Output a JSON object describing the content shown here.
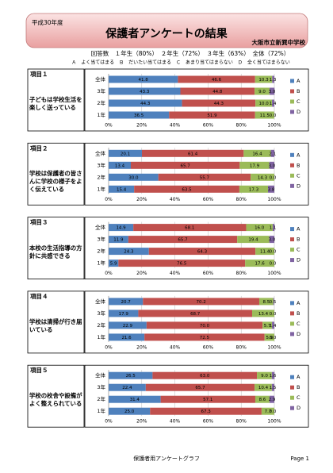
{
  "header": {
    "year": "平成30年度",
    "title": "保護者アンケートの結果",
    "school": "大阪市立新巽中学校",
    "responses": "回答数　１年生（80%）　２年生（72%）　３年生（63%）　全体（72%）",
    "legend_note": "Ａ　よく当てはまる　Ｂ　だいたい当てはまる　Ｃ　あまり当てはまらない　Ｄ　全く当てはまらない"
  },
  "chart_data": [
    {
      "type": "stacked-bar",
      "title": "項目１",
      "question": "子どもは学校生活を楽しく送っている",
      "categories": [
        "全体",
        "3年",
        "2年",
        "1年"
      ],
      "series": [
        {
          "name": "A",
          "color": "#4f81bd",
          "values": [
            41.8,
            43.3,
            44.3,
            36.5
          ],
          "value_labels": [
            "41.8",
            "43.3",
            "44.3",
            "36.5"
          ]
        },
        {
          "name": "B",
          "color": "#c0504d",
          "values": [
            46.6,
            44.8,
            44.3,
            51.9
          ],
          "value_labels": [
            "46.6",
            "44.8",
            "44.3",
            "51.9"
          ]
        },
        {
          "name": "C",
          "color": "#9bbb59",
          "values": [
            10.3,
            9.0,
            10.0,
            11.5
          ],
          "value_labels": [
            "10.3",
            "9.0",
            "10.0",
            "11.5"
          ]
        },
        {
          "name": "D",
          "color": "#8064a2",
          "values": [
            1.3,
            3.0,
            1.4,
            0
          ],
          "value_labels": [
            "1.3",
            "3.0",
            "1.4",
            "0.0"
          ]
        }
      ],
      "xlim": [
        0,
        100
      ],
      "xticks": [
        {
          "value": 0,
          "label": "0%"
        },
        {
          "value": 20,
          "label": "20%"
        },
        {
          "value": 40,
          "label": "40%"
        },
        {
          "value": 60,
          "label": "60%"
        },
        {
          "value": 80,
          "label": "80%"
        },
        {
          "value": 100,
          "label": "100%"
        }
      ],
      "grid": true
    },
    {
      "type": "stacked-bar",
      "title": "項目２",
      "question": "学校は保護者の皆さんに学校の様子をよく伝えている",
      "categories": [
        "全体",
        "3年",
        "2年",
        "1年"
      ],
      "series": [
        {
          "name": "A",
          "color": "#4f81bd",
          "values": [
            20.1,
            13.4,
            30.0,
            15.4
          ],
          "value_labels": [
            "20.1",
            "13.4",
            "30.0",
            "15.4"
          ]
        },
        {
          "name": "B",
          "color": "#c0504d",
          "values": [
            61.4,
            65.7,
            55.7,
            63.5
          ],
          "value_labels": [
            "61.4",
            "65.7",
            "55.7",
            "63.5"
          ]
        },
        {
          "name": "C",
          "color": "#9bbb59",
          "values": [
            16.4,
            17.9,
            14.3,
            17.3
          ],
          "value_labels": [
            "16.4",
            "17.9",
            "14.3",
            "17.3"
          ]
        },
        {
          "name": "D",
          "color": "#8064a2",
          "values": [
            2.1,
            3.0,
            0,
            3.8
          ],
          "value_labels": [
            "2.1",
            "3.0",
            "0.0",
            "3.8"
          ]
        }
      ],
      "xlim": [
        0,
        100
      ],
      "xticks": [
        {
          "value": 0,
          "label": "0%"
        },
        {
          "value": 20,
          "label": "20%"
        },
        {
          "value": 40,
          "label": "40%"
        },
        {
          "value": 60,
          "label": "60%"
        },
        {
          "value": 80,
          "label": "80%"
        },
        {
          "value": 100,
          "label": "100%"
        }
      ],
      "grid": true
    },
    {
      "type": "stacked-bar",
      "title": "項目３",
      "question": "本校の生活指導の方針に共感できる",
      "categories": [
        "全体",
        "3年",
        "2年",
        "1年"
      ],
      "series": [
        {
          "name": "A",
          "color": "#4f81bd",
          "values": [
            14.9,
            11.9,
            24.3,
            5.9
          ],
          "value_labels": [
            "14.9",
            "11.9",
            "24.3",
            "5.9"
          ]
        },
        {
          "name": "B",
          "color": "#c0504d",
          "values": [
            68.1,
            65.7,
            64.3,
            76.5
          ],
          "value_labels": [
            "68.1",
            "65.7",
            "64.3",
            "76.5"
          ]
        },
        {
          "name": "C",
          "color": "#9bbb59",
          "values": [
            16.0,
            19.4,
            11.4,
            17.6
          ],
          "value_labels": [
            "16.0",
            "19.4",
            "11.4",
            "17.6"
          ]
        },
        {
          "name": "D",
          "color": "#8064a2",
          "values": [
            1.1,
            3.0,
            0,
            0
          ],
          "value_labels": [
            "1.1",
            "3.0",
            "0.0",
            "0.0"
          ]
        }
      ],
      "xlim": [
        0,
        100
      ],
      "xticks": [
        {
          "value": 0,
          "label": "0%"
        },
        {
          "value": 20,
          "label": "20%"
        },
        {
          "value": 40,
          "label": "40%"
        },
        {
          "value": 60,
          "label": "60%"
        },
        {
          "value": 80,
          "label": "80%"
        },
        {
          "value": 100,
          "label": "100%"
        }
      ],
      "grid": true
    },
    {
      "type": "stacked-bar",
      "title": "項目４",
      "question": "学校は清掃が行き届いている",
      "categories": [
        "全体",
        "3年",
        "2年",
        "1年"
      ],
      "series": [
        {
          "name": "A",
          "color": "#4f81bd",
          "values": [
            20.7,
            17.9,
            22.9,
            21.6
          ],
          "value_labels": [
            "20.7",
            "17.9",
            "22.9",
            "21.6"
          ]
        },
        {
          "name": "B",
          "color": "#c0504d",
          "values": [
            70.2,
            68.7,
            70.0,
            72.5
          ],
          "value_labels": [
            "70.2",
            "68.7",
            "70.0",
            "72.5"
          ]
        },
        {
          "name": "C",
          "color": "#9bbb59",
          "values": [
            8.5,
            13.4,
            5.7,
            5.9
          ],
          "value_labels": [
            "8.5",
            "13.4",
            "5.7",
            "5.9"
          ]
        },
        {
          "name": "D",
          "color": "#8064a2",
          "values": [
            0.5,
            0,
            1.4,
            0
          ],
          "value_labels": [
            "0.5",
            "0.0",
            "1.4",
            "0.0"
          ]
        }
      ],
      "xlim": [
        0,
        100
      ],
      "xticks": [
        {
          "value": 0,
          "label": "0%"
        },
        {
          "value": 20,
          "label": "20%"
        },
        {
          "value": 40,
          "label": "40%"
        },
        {
          "value": 60,
          "label": "60%"
        },
        {
          "value": 80,
          "label": "80%"
        },
        {
          "value": 100,
          "label": "100%"
        }
      ],
      "grid": true
    },
    {
      "type": "stacked-bar",
      "title": "項目５",
      "question": "学校の校舎や設備がよく整えられている",
      "categories": [
        "全体",
        "3年",
        "2年",
        "1年"
      ],
      "series": [
        {
          "name": "A",
          "color": "#4f81bd",
          "values": [
            26.5,
            22.4,
            31.4,
            25.0
          ],
          "value_labels": [
            "26.5",
            "22.4",
            "31.4",
            "25.0"
          ]
        },
        {
          "name": "B",
          "color": "#c0504d",
          "values": [
            63.0,
            65.7,
            57.1,
            67.3
          ],
          "value_labels": [
            "63.0",
            "65.7",
            "57.1",
            "67.3"
          ]
        },
        {
          "name": "C",
          "color": "#9bbb59",
          "values": [
            9.0,
            10.4,
            8.6,
            7.7
          ],
          "value_labels": [
            "9.0",
            "10.4",
            "8.6",
            "7.7"
          ]
        },
        {
          "name": "D",
          "color": "#8064a2",
          "values": [
            1.6,
            1.5,
            2.9,
            0
          ],
          "value_labels": [
            "1.6",
            "1.5",
            "2.9",
            "0.0"
          ]
        }
      ],
      "xlim": [
        0,
        100
      ],
      "xticks": [
        {
          "value": 0,
          "label": "0%"
        },
        {
          "value": 20,
          "label": "20%"
        },
        {
          "value": 40,
          "label": "40%"
        },
        {
          "value": 60,
          "label": "60%"
        },
        {
          "value": 80,
          "label": "80%"
        },
        {
          "value": 100,
          "label": "100%"
        }
      ],
      "grid": true
    }
  ],
  "footer": {
    "title": "保護者用アンケートグラフ",
    "page": "Page 1"
  }
}
